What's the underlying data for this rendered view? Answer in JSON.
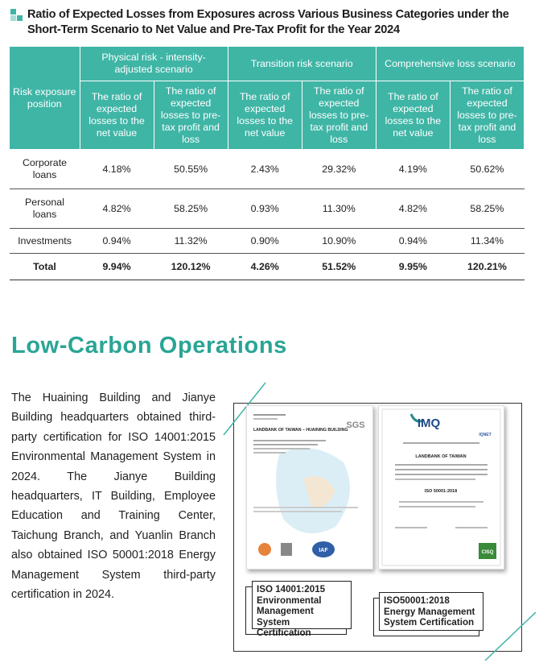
{
  "title": "Ratio of Expected Losses from Exposures across Various Business Categories under the Short-Term Scenario to Net Value and Pre-Tax Profit for the Year 2024",
  "table": {
    "corner": "Risk exposure position",
    "groups": [
      "Physical risk - intensity-adjusted scenario",
      "Transition risk scenario",
      "Comprehensive loss scenario"
    ],
    "subheaders": [
      "The ratio of expected losses to the net value",
      "The ratio of expected losses to pre-tax profit and loss",
      "The ratio of expected losses to the net value",
      "The ratio of expected losses to pre-tax profit and loss",
      "The ratio of expected losses to the net value",
      "The ratio of expected losses to pre-tax profit and loss"
    ],
    "rows": [
      [
        "Corporate loans",
        "4.18%",
        "50.55%",
        "2.43%",
        "29.32%",
        "4.19%",
        "50.62%"
      ],
      [
        "Personal loans",
        "4.82%",
        "58.25%",
        "0.93%",
        "11.30%",
        "4.82%",
        "58.25%"
      ],
      [
        "Investments",
        "0.94%",
        "11.32%",
        "0.90%",
        "10.90%",
        "0.94%",
        "11.34%"
      ],
      [
        "Total",
        "9.94%",
        "120.12%",
        "4.26%",
        "51.52%",
        "9.95%",
        "120.21%"
      ]
    ]
  },
  "section": {
    "heading": "Low-Carbon Operations",
    "body": "The Huaining Building and Jianye Building headquarters obtained third-party certification for ISO 14001:2015 Environmental Management System in 2024. The Jianye Building headquarters, IT Building, Employee Education and Training Center, Taichung Branch, and Yuanlin Branch also obtained ISO 50001:2018 Energy Management System third-party certification in 2024."
  },
  "certificates": [
    {
      "logo": "SGS",
      "holder": "LANDBANK OF TAIWAN – HUAINING BUILDING",
      "mark": "IAF",
      "caption": "ISO 14001:2015 Environmental Management System Certification"
    },
    {
      "logo": "IMQ",
      "mark2": "IQNET",
      "holder": "LANDBANK OF TAIWAN",
      "standard": "ISO 50001:2018",
      "mark": "CISQ",
      "caption": "ISO50001:2018 Energy Management System Certification"
    }
  ]
}
